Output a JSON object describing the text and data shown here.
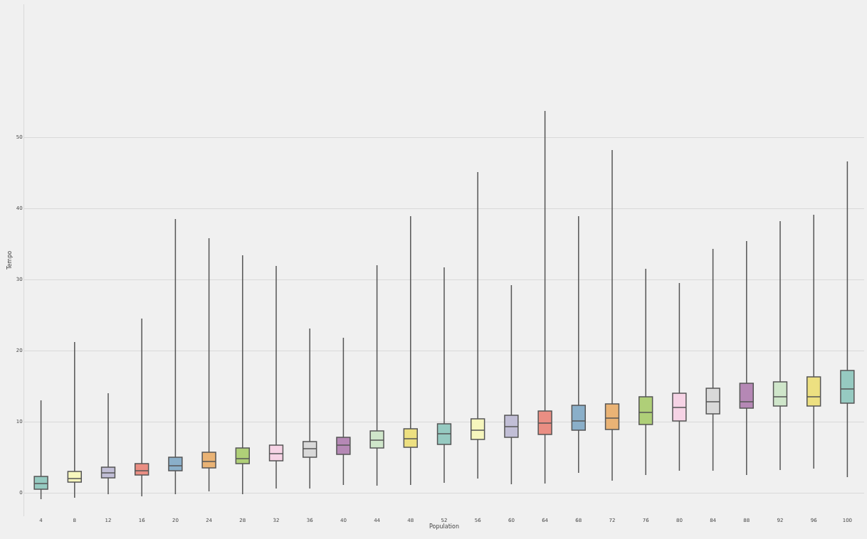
{
  "chart_data": {
    "type": "box",
    "xlabel": "Population",
    "ylabel": "Tempo",
    "categories": [
      "4",
      "8",
      "12",
      "16",
      "20",
      "24",
      "28",
      "32",
      "36",
      "40",
      "44",
      "48",
      "52",
      "56",
      "60",
      "64",
      "68",
      "72",
      "76",
      "80",
      "84",
      "88",
      "92",
      "96",
      "100"
    ],
    "boxes": [
      {
        "low": -0.9,
        "q1": 0.5,
        "median": 1.3,
        "q3": 2.3,
        "high": 13.0
      },
      {
        "low": -0.7,
        "q1": 1.5,
        "median": 2.0,
        "q3": 3.0,
        "high": 21.2
      },
      {
        "low": -0.2,
        "q1": 2.1,
        "median": 2.8,
        "q3": 3.6,
        "high": 14.0
      },
      {
        "low": -0.5,
        "q1": 2.5,
        "median": 3.1,
        "q3": 4.1,
        "high": 24.5
      },
      {
        "low": -0.2,
        "q1": 3.1,
        "median": 3.8,
        "q3": 5.0,
        "high": 38.5
      },
      {
        "low": 0.2,
        "q1": 3.5,
        "median": 4.4,
        "q3": 5.7,
        "high": 35.8
      },
      {
        "low": -0.2,
        "q1": 4.1,
        "median": 4.8,
        "q3": 6.3,
        "high": 33.4
      },
      {
        "low": 0.6,
        "q1": 4.5,
        "median": 5.5,
        "q3": 6.7,
        "high": 31.9
      },
      {
        "low": 0.6,
        "q1": 5.0,
        "median": 6.2,
        "q3": 7.2,
        "high": 23.1
      },
      {
        "low": 1.1,
        "q1": 5.4,
        "median": 6.7,
        "q3": 7.8,
        "high": 21.8
      },
      {
        "low": 1.0,
        "q1": 6.3,
        "median": 7.4,
        "q3": 8.7,
        "high": 32.0
      },
      {
        "low": 1.1,
        "q1": 6.4,
        "median": 7.6,
        "q3": 9.0,
        "high": 38.9
      },
      {
        "low": 1.4,
        "q1": 6.8,
        "median": 8.3,
        "q3": 9.7,
        "high": 31.7
      },
      {
        "low": 2.0,
        "q1": 7.5,
        "median": 8.8,
        "q3": 10.4,
        "high": 45.1
      },
      {
        "low": 1.2,
        "q1": 7.8,
        "median": 9.3,
        "q3": 10.9,
        "high": 29.2
      },
      {
        "low": 1.3,
        "q1": 8.2,
        "median": 9.8,
        "q3": 11.5,
        "high": 53.7
      },
      {
        "low": 2.8,
        "q1": 8.8,
        "median": 10.1,
        "q3": 12.3,
        "high": 38.9
      },
      {
        "low": 1.7,
        "q1": 8.9,
        "median": 10.5,
        "q3": 12.5,
        "high": 48.2
      },
      {
        "low": 2.5,
        "q1": 9.6,
        "median": 11.3,
        "q3": 13.5,
        "high": 31.5
      },
      {
        "low": 3.1,
        "q1": 10.1,
        "median": 12.0,
        "q3": 14.0,
        "high": 29.5
      },
      {
        "low": 3.1,
        "q1": 11.1,
        "median": 12.8,
        "q3": 14.7,
        "high": 34.3
      },
      {
        "low": 2.5,
        "q1": 11.9,
        "median": 12.8,
        "q3": 15.4,
        "high": 35.4
      },
      {
        "low": 3.2,
        "q1": 12.2,
        "median": 13.5,
        "q3": 15.6,
        "high": 38.2
      },
      {
        "low": 3.4,
        "q1": 12.2,
        "median": 13.5,
        "q3": 16.3,
        "high": 39.1
      },
      {
        "low": 2.2,
        "q1": 12.6,
        "median": 14.6,
        "q3": 17.2,
        "high": 46.6
      }
    ],
    "colors": [
      "#96cac1",
      "#f6f6bd",
      "#c1bed6",
      "#ea8e83",
      "#8aafc9",
      "#eab375",
      "#afcf78",
      "#f6d3e5",
      "#d9d9d9",
      "#b588b5",
      "#cfe6ca",
      "#ede081",
      "#96cac1",
      "#f6f6bd",
      "#c1bed6",
      "#ea8e83",
      "#8aafc9",
      "#eab375",
      "#afcf78",
      "#f6d3e5",
      "#d9d9d9",
      "#b588b5",
      "#cfe6ca",
      "#ede081",
      "#96cac1"
    ],
    "ylim": [
      -3.3,
      68.7
    ],
    "yticks": [
      0,
      10,
      20,
      30,
      40,
      50
    ],
    "grid": "y"
  }
}
